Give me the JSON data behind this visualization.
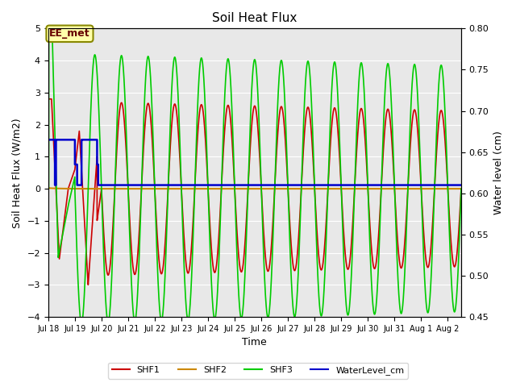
{
  "title": "Soil Heat Flux",
  "xlabel": "Time",
  "ylabel_left": "Soil Heat Flux (W/m2)",
  "ylabel_right": "Water level (cm)",
  "ylim_left": [
    -4.0,
    5.0
  ],
  "ylim_right": [
    0.45,
    0.8
  ],
  "yticks_left": [
    -4.0,
    -3.0,
    -2.0,
    -1.0,
    0.0,
    1.0,
    2.0,
    3.0,
    4.0,
    5.0
  ],
  "yticks_right": [
    0.45,
    0.5,
    0.55,
    0.6,
    0.65,
    0.7,
    0.75,
    0.8
  ],
  "background_color": "#ffffff",
  "plot_bg_color": "#e8e8e8",
  "shf1_color": "#cc0000",
  "shf2_color": "#cc8800",
  "shf3_color": "#00cc00",
  "water_color": "#0000cc",
  "annotation_text": "EE_met",
  "annotation_bg": "#ffffaa",
  "annotation_border": "#888800",
  "grid_color": "#ffffff",
  "legend_entries": [
    "SHF1",
    "SHF2",
    "SHF3",
    "WaterLevel_cm"
  ],
  "day_labels": [
    "Jul 18",
    "Jul 19",
    "Jul 20",
    "Jul 21",
    "Jul 22",
    "Jul 23",
    "Jul 24",
    "Jul 25",
    "Jul 26",
    "Jul 27",
    "Jul 28",
    "Jul 29",
    "Jul 30",
    "Jul 31",
    "Aug 1",
    "Aug 2"
  ]
}
